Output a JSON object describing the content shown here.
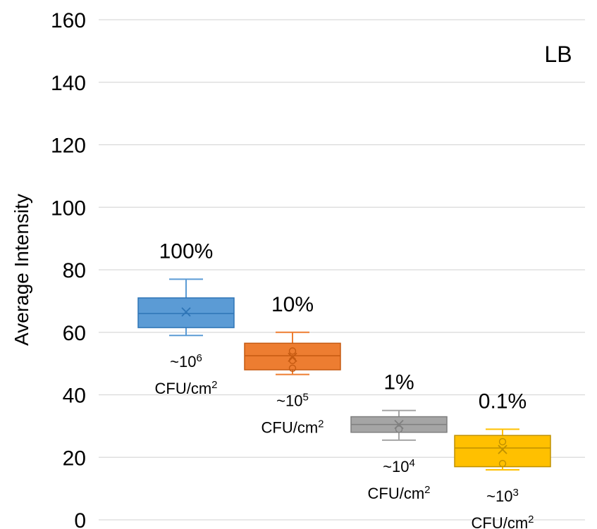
{
  "chart_data": {
    "type": "box",
    "title": "",
    "corner_label": "LB",
    "ylabel": "Average Intensity",
    "xlabel": "",
    "ylim": [
      0,
      160
    ],
    "yticks": [
      0,
      20,
      40,
      60,
      80,
      100,
      120,
      140,
      160
    ],
    "grid": true,
    "series": [
      {
        "label": "100%",
        "cfu_main": "~10",
        "cfu_exp": "6",
        "cfu_unit": "CFU/cm",
        "cfu_unit_exp": "2",
        "color": "#5B9BD5",
        "stroke": "#2E75B6",
        "whisker_low": 59,
        "q1": 61.5,
        "median": 66,
        "q3": 71,
        "whisker_high": 77,
        "mean": 66.5,
        "points": []
      },
      {
        "label": "10%",
        "cfu_main": "~10",
        "cfu_exp": "5",
        "cfu_unit": "CFU/cm",
        "cfu_unit_exp": "2",
        "color": "#ED7D31",
        "stroke": "#C55A11",
        "whisker_low": 46.5,
        "q1": 48,
        "median": 52.5,
        "q3": 56.5,
        "whisker_high": 60,
        "mean": 52,
        "points": [
          54,
          51,
          48.5
        ]
      },
      {
        "label": "1%",
        "cfu_main": "~10",
        "cfu_exp": "4",
        "cfu_unit": "CFU/cm",
        "cfu_unit_exp": "2",
        "color": "#A5A5A5",
        "stroke": "#7F7F7F",
        "whisker_low": 25.5,
        "q1": 28,
        "median": 30.5,
        "q3": 33,
        "whisker_high": 35,
        "mean": 30.5,
        "points": [
          29
        ]
      },
      {
        "label": "0.1%",
        "cfu_main": "~10",
        "cfu_exp": "3",
        "cfu_unit": "CFU/cm",
        "cfu_unit_exp": "2",
        "color": "#FFC000",
        "stroke": "#BF9000",
        "whisker_low": 16,
        "q1": 17,
        "median": 23,
        "q3": 27,
        "whisker_high": 29,
        "mean": 22.5,
        "points": [
          25,
          18
        ]
      }
    ]
  }
}
